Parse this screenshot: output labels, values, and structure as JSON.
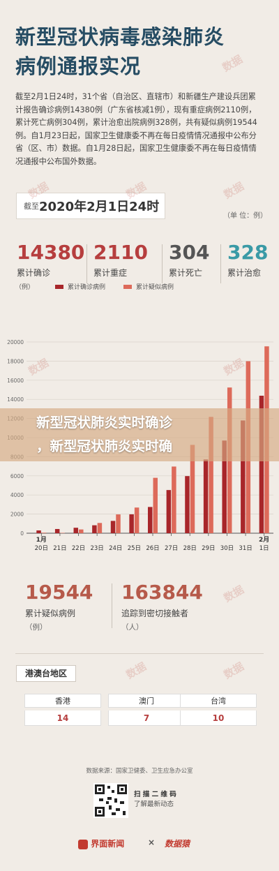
{
  "title_line1": "新型冠状病毒感染肺炎",
  "title_line2": "病例通报实况",
  "intro": "截至2月1日24时，31个省（自治区、直辖市）和新疆生产建设兵团累计报告确诊病例14380例（广东省核减1例），现有重症病例2110例，累计死亡病例304例，累计治愈出院病例328例，共有疑似病例19544例。自1月23日起，国家卫生健康委不再在每日疫情情况通报中公布分省（区、市）数据。自1月28日起，国家卫生健康委不再在每日疫情情况通报中公布国外数据。",
  "date_prefix": "截至",
  "date_value": "2020年2月1日24时",
  "unit": "（单 位：例）",
  "stats": [
    {
      "value": "14380",
      "label": "累计确诊",
      "color": "#b63e3e"
    },
    {
      "value": "2110",
      "label": "累计重症",
      "color": "#b63e3e"
    },
    {
      "value": "304",
      "label": "累计死亡",
      "color": "#555555"
    },
    {
      "value": "328",
      "label": "累计治愈",
      "color": "#3a9aa6"
    }
  ],
  "chart_legend_unit": "（例）",
  "chart_data": {
    "type": "bar",
    "categories": [
      "20日",
      "21日",
      "22日",
      "23日",
      "24日",
      "25日",
      "26日",
      "27日",
      "28日",
      "29日",
      "30日",
      "31日",
      "1日"
    ],
    "month_labels": {
      "start": "1月",
      "end": "2月"
    },
    "series": [
      {
        "name": "累计确诊病例",
        "color": "#a8262a",
        "values": [
          291,
          440,
          571,
          830,
          1287,
          1975,
          2744,
          4515,
          5974,
          7711,
          9692,
          11791,
          14380
        ]
      },
      {
        "name": "累计疑似病例",
        "color": "#dd6a5a",
        "values": [
          54,
          37,
          393,
          1072,
          1965,
          2684,
          5794,
          6973,
          9239,
          12167,
          15238,
          17988,
          19544
        ]
      }
    ],
    "ylim": [
      0,
      20000
    ],
    "yticks": [
      0,
      2000,
      4000,
      6000,
      8000,
      10000,
      12000,
      14000,
      16000,
      18000,
      20000
    ],
    "grid": true
  },
  "banner_line1": "新型冠状肺炎实时确诊",
  "banner_line2": "，新型冠状肺炎实时确",
  "suspected": {
    "value": "19544",
    "label": "累计疑似病例",
    "sub": "（例）"
  },
  "contacts": {
    "value": "163844",
    "label": "追踪到密切接触者",
    "sub": "（人）"
  },
  "region_title": "港澳台地区",
  "regions": [
    {
      "name": "香港",
      "value": "14"
    },
    {
      "name": "澳门",
      "value": "7"
    },
    {
      "name": "台湾",
      "value": "10"
    }
  ],
  "source": "数据来源：国家卫健委、卫生应急办公室",
  "scan_line1": "扫 描 二 维 码",
  "scan_line2": "了解最新动态",
  "brand1": "界面新闻",
  "brand_x": "×",
  "brand2": "数据猿"
}
